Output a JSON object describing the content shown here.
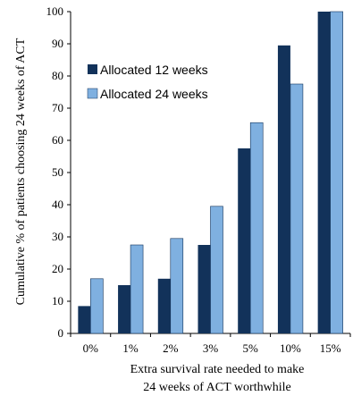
{
  "chart_data": {
    "type": "bar",
    "categories": [
      "0%",
      "1%",
      "2%",
      "3%",
      "5%",
      "10%",
      "15%"
    ],
    "series": [
      {
        "name": "Allocated 12 weeks",
        "values": [
          8.5,
          15,
          17,
          27.5,
          57.5,
          89.5,
          100
        ],
        "color": "#12325a"
      },
      {
        "name": "Allocated 24 weeks",
        "values": [
          17,
          27.5,
          29.5,
          39.5,
          65.5,
          77.5,
          100
        ],
        "color": "#7fb0e0"
      }
    ],
    "ylabel": "Cumulative % of patients choosing 24 weeks of ACT",
    "xlabel_lines": [
      "Extra survival rate needed to make",
      "24 weeks of ACT worthwhile"
    ],
    "ylim": [
      0,
      100
    ],
    "yticks": [
      0,
      10,
      20,
      30,
      40,
      50,
      60,
      70,
      80,
      90,
      100
    ],
    "legend_position": "upper-left inside plot",
    "grid": false
  }
}
